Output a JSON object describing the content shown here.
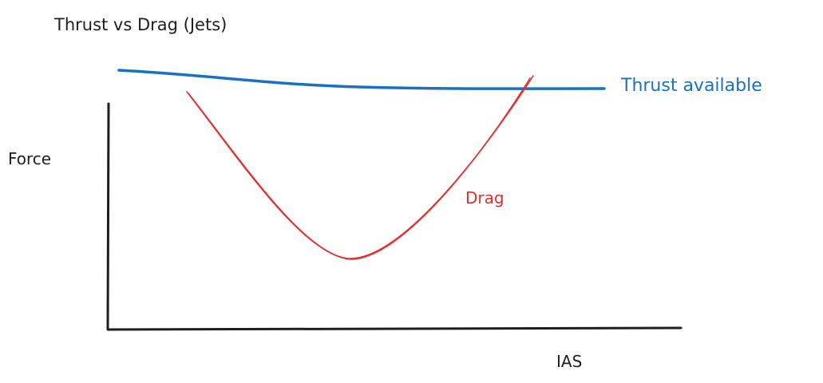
{
  "title": "Thrust vs Drag (Jets)",
  "y_axis_label": "Force",
  "x_axis_label": "IAS",
  "series": {
    "thrust": {
      "label": "Thrust available",
      "color": "#1971c2"
    },
    "drag": {
      "label": "Drag",
      "color": "#e03131"
    }
  },
  "axis_color": "#1e1e1e",
  "text_color": "#1e1e1e"
}
